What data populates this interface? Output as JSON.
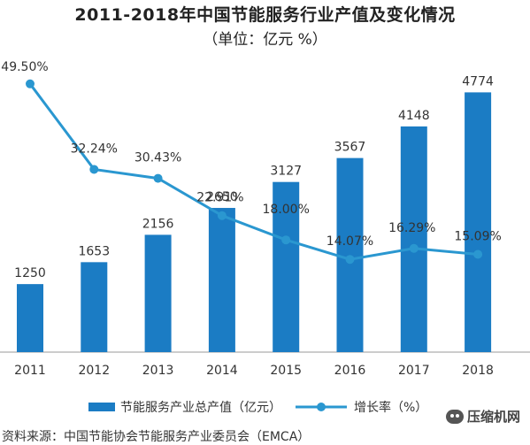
{
  "chart_data": {
    "type": "bar+line",
    "title": "2011-2018年中国节能服务行业产值及变化情况",
    "subtitle": "（单位：亿元    %）",
    "categories": [
      "2011",
      "2012",
      "2013",
      "2014",
      "2015",
      "2016",
      "2017",
      "2018"
    ],
    "series": [
      {
        "name": "节能服务产业总产值（亿元）",
        "type": "bar",
        "values": [
          1250,
          1653,
          2156,
          2650,
          3127,
          3567,
          4148,
          4774
        ],
        "labels": [
          "1250",
          "1653",
          "2156",
          "2650",
          "3127",
          "3567",
          "4148",
          "4774"
        ],
        "color": "#1b7cc4"
      },
      {
        "name": "增长率（%）",
        "type": "line",
        "values": [
          49.5,
          32.24,
          30.43,
          22.91,
          18.0,
          14.07,
          16.29,
          15.09
        ],
        "labels": [
          "49.50%",
          "32.24%",
          "30.43%",
          "22.91%",
          "18.00%",
          "14.07%",
          "16.29%",
          "15.09%"
        ],
        "color": "#2a97d0"
      }
    ],
    "grid": false,
    "legend_position": "bottom"
  },
  "source": "资料来源：中国节能协会节能服务产业委员会（EMCA）",
  "watermark": "压缩机网"
}
